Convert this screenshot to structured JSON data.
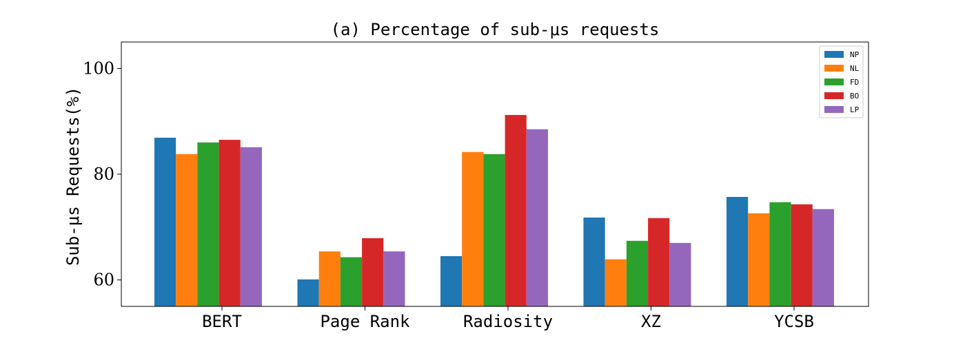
{
  "chart_data": {
    "type": "bar",
    "title": "(a) Percentage of sub-μs requests",
    "ylabel": "Sub-μs Requests(%)",
    "xlabel": "",
    "categories": [
      "BERT",
      "Page Rank",
      "Radiosity",
      "XZ",
      "YCSB"
    ],
    "ylim": [
      55,
      105
    ],
    "yticks": [
      60,
      80,
      100
    ],
    "grid": false,
    "legend_position": "top-right",
    "series": [
      {
        "name": "NP",
        "color": "#1f77b4",
        "values": [
          86.9,
          60.1,
          64.5,
          71.8,
          75.7
        ]
      },
      {
        "name": "NL",
        "color": "#ff7f0e",
        "values": [
          83.8,
          65.4,
          84.2,
          63.9,
          72.6
        ]
      },
      {
        "name": "FD",
        "color": "#2ca02c",
        "values": [
          86.0,
          64.3,
          83.8,
          67.4,
          74.7
        ]
      },
      {
        "name": "BO",
        "color": "#d62728",
        "values": [
          86.5,
          67.9,
          91.2,
          71.7,
          74.3
        ]
      },
      {
        "name": "LP",
        "color": "#9467bd",
        "values": [
          85.1,
          65.4,
          88.5,
          67.0,
          73.4
        ]
      }
    ]
  }
}
